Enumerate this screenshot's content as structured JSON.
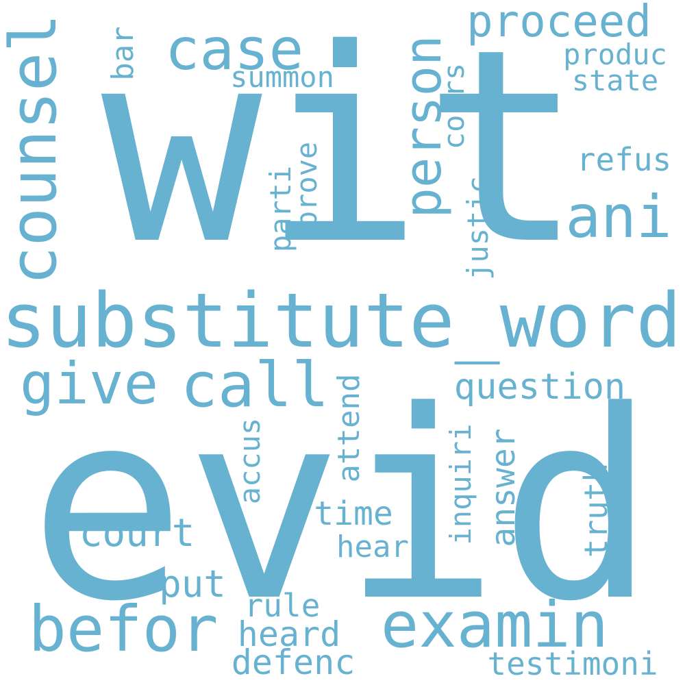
{
  "color": "#67b2d0",
  "background": "#ffffff",
  "words": {
    "wit": "wit",
    "evid": "evid",
    "substitute_word": "substitute_word",
    "counsel": "counsel",
    "case": "case",
    "person": "person",
    "proceed": "proceed",
    "produc": "produc",
    "state": "state",
    "summon": "summon",
    "bar": "bar",
    "cours": "cours",
    "refus": "refus",
    "ani": "ani",
    "parti": "parti",
    "prove": "prove",
    "justic": "justic",
    "give": "give",
    "call": "call",
    "question": "question",
    "attend": "attend",
    "accus": "accus",
    "inquiri": "inquiri",
    "answer": "answer",
    "truth": "truth",
    "time": "time",
    "court": "court",
    "hear": "hear",
    "put": "put",
    "rule": "rule",
    "befor": "befor",
    "examin": "examin",
    "heard": "heard",
    "defenc": "defenc",
    "testimoni": "testimoni"
  }
}
